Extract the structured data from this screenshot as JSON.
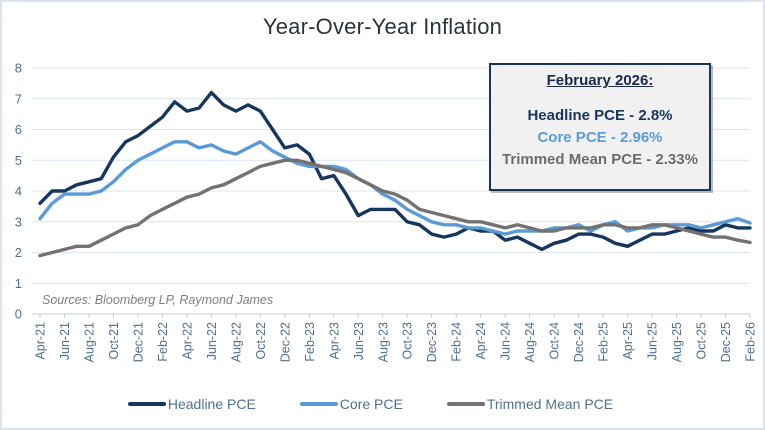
{
  "title": "Year-Over-Year Inflation",
  "sources_note": "Sources: Bloomberg LP, Raymond James",
  "annotation_box": {
    "heading": "February 2026:",
    "lines": [
      {
        "label": "Headline PCE - 2.8%",
        "color": "#17365d"
      },
      {
        "label": "Core PCE - 2.96%",
        "color": "#5b9bd5"
      },
      {
        "label": "Trimmed Mean PCE - 2.33%",
        "color": "#6f6a6a"
      }
    ]
  },
  "legend": {
    "items": [
      {
        "label": "Headline PCE",
        "color": "#17365d"
      },
      {
        "label": "Core PCE",
        "color": "#5b9bd5"
      },
      {
        "label": "Trimmed Mean PCE",
        "color": "#767171"
      }
    ]
  },
  "colors": {
    "axis_label": "#4f7090",
    "gridline": "#dce4ed",
    "axis_line": "#c2cedb",
    "frame_border": "#dce3ea"
  },
  "chart_data": {
    "type": "line",
    "title": "Year-Over-Year Inflation",
    "xlabel": "",
    "ylabel": "",
    "ylim": [
      0,
      8
    ],
    "yticks": [
      0,
      1,
      2,
      3,
      4,
      5,
      6,
      7,
      8
    ],
    "grid": true,
    "legend_position": "bottom",
    "x_tick_step": 2,
    "x": [
      "Apr-21",
      "May-21",
      "Jun-21",
      "Jul-21",
      "Aug-21",
      "Sep-21",
      "Oct-21",
      "Nov-21",
      "Dec-21",
      "Jan-22",
      "Feb-22",
      "Mar-22",
      "Apr-22",
      "May-22",
      "Jun-22",
      "Jul-22",
      "Aug-22",
      "Sep-22",
      "Oct-22",
      "Nov-22",
      "Dec-22",
      "Jan-23",
      "Feb-23",
      "Mar-23",
      "Apr-23",
      "May-23",
      "Jun-23",
      "Jul-23",
      "Aug-23",
      "Sep-23",
      "Oct-23",
      "Nov-23",
      "Dec-23",
      "Jan-24",
      "Feb-24",
      "Mar-24",
      "Apr-24",
      "May-24",
      "Jun-24",
      "Jul-24",
      "Aug-24",
      "Sep-24",
      "Oct-24",
      "Nov-24",
      "Dec-24",
      "Jan-25",
      "Feb-25",
      "Mar-25",
      "Apr-25",
      "May-25",
      "Jun-25",
      "Jul-25",
      "Aug-25",
      "Sep-25",
      "Oct-25",
      "Nov-25",
      "Dec-25",
      "Jan-26",
      "Feb-26"
    ],
    "series": [
      {
        "name": "Headline PCE",
        "color": "#17365d",
        "final_value_label": "2.8%",
        "values": [
          3.6,
          4.0,
          4.0,
          4.2,
          4.3,
          4.4,
          5.1,
          5.6,
          5.8,
          6.1,
          6.4,
          6.9,
          6.6,
          6.7,
          7.2,
          6.8,
          6.6,
          6.8,
          6.6,
          6.0,
          5.4,
          5.5,
          5.2,
          4.4,
          4.5,
          3.9,
          3.2,
          3.4,
          3.4,
          3.4,
          3.0,
          2.9,
          2.6,
          2.5,
          2.6,
          2.8,
          2.7,
          2.7,
          2.4,
          2.5,
          2.3,
          2.1,
          2.3,
          2.4,
          2.6,
          2.6,
          2.5,
          2.3,
          2.2,
          2.4,
          2.6,
          2.6,
          2.7,
          2.8,
          2.7,
          2.7,
          2.9,
          2.8,
          2.8
        ]
      },
      {
        "name": "Core PCE",
        "color": "#5b9bd5",
        "final_value_label": "2.96%",
        "values": [
          3.1,
          3.6,
          3.9,
          3.9,
          3.9,
          4.0,
          4.3,
          4.7,
          5.0,
          5.2,
          5.4,
          5.6,
          5.6,
          5.4,
          5.5,
          5.3,
          5.2,
          5.4,
          5.6,
          5.3,
          5.1,
          4.9,
          4.8,
          4.8,
          4.8,
          4.7,
          4.4,
          4.2,
          3.9,
          3.7,
          3.4,
          3.2,
          3.0,
          2.9,
          2.9,
          2.8,
          2.8,
          2.7,
          2.6,
          2.7,
          2.7,
          2.7,
          2.8,
          2.8,
          2.9,
          2.7,
          2.9,
          3.0,
          2.7,
          2.8,
          2.8,
          2.9,
          2.9,
          2.9,
          2.8,
          2.9,
          3.0,
          3.1,
          2.96
        ]
      },
      {
        "name": "Trimmed Mean PCE",
        "color": "#767171",
        "final_value_label": "2.33%",
        "values": [
          1.9,
          2.0,
          2.1,
          2.2,
          2.2,
          2.4,
          2.6,
          2.8,
          2.9,
          3.2,
          3.4,
          3.6,
          3.8,
          3.9,
          4.1,
          4.2,
          4.4,
          4.6,
          4.8,
          4.9,
          5.0,
          5.0,
          4.9,
          4.8,
          4.7,
          4.6,
          4.4,
          4.2,
          4.0,
          3.9,
          3.7,
          3.4,
          3.3,
          3.2,
          3.1,
          3.0,
          3.0,
          2.9,
          2.8,
          2.9,
          2.8,
          2.7,
          2.7,
          2.8,
          2.8,
          2.8,
          2.9,
          2.9,
          2.8,
          2.8,
          2.9,
          2.9,
          2.8,
          2.7,
          2.6,
          2.5,
          2.5,
          2.4,
          2.33
        ]
      }
    ]
  }
}
